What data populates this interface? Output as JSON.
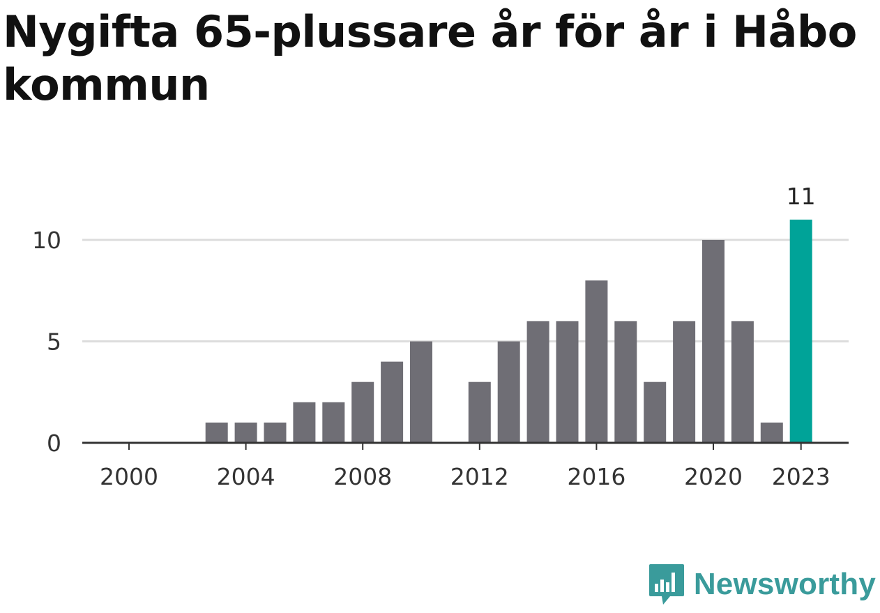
{
  "title": "Nygifta 65-plussare år för år i Håbo kommun",
  "brand": {
    "name": "Newsworthy",
    "logo_icon": "newsworthy-chart-logo-icon"
  },
  "colors": {
    "bar": "#6f6e75",
    "highlight": "#00a398",
    "grid": "#dcdcdc",
    "axis": "#333333",
    "brand": "#3a9b9b"
  },
  "chart_data": {
    "type": "bar",
    "title": "Nygifta 65-plussare år för år i Håbo kommun",
    "xlabel": "",
    "ylabel": "",
    "categories": [
      2000,
      2001,
      2002,
      2003,
      2004,
      2005,
      2006,
      2007,
      2008,
      2009,
      2010,
      2011,
      2012,
      2013,
      2014,
      2015,
      2016,
      2017,
      2018,
      2019,
      2020,
      2021,
      2022,
      2023
    ],
    "values": [
      0,
      0,
      0,
      1,
      1,
      1,
      2,
      2,
      3,
      4,
      5,
      0,
      3,
      5,
      6,
      6,
      8,
      6,
      3,
      6,
      10,
      6,
      1,
      11
    ],
    "highlight_category": 2023,
    "highlight_label": "11",
    "x_tick_labels": [
      "2000",
      "2004",
      "2008",
      "2012",
      "2016",
      "2020",
      "2023"
    ],
    "y_ticks": [
      "0",
      "5",
      "10"
    ],
    "ylim": [
      0,
      11
    ],
    "grid": true,
    "legend": "none"
  }
}
